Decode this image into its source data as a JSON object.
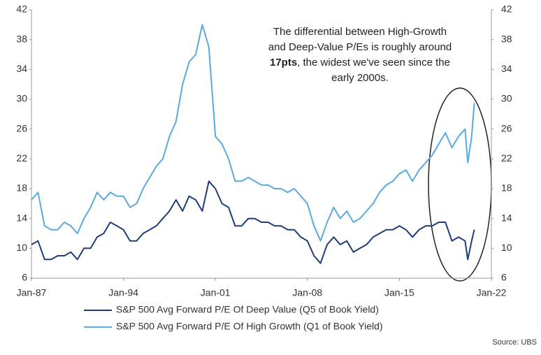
{
  "chart_data": {
    "type": "line",
    "annotation": [
      "The differential between High-Growth",
      "and Deep-Value P/Es is roughly around",
      [
        "17pts",
        ", the widest we've seen since the"
      ],
      "early 2000s."
    ],
    "source": "Source: UBS",
    "x": [
      1987,
      1987.5,
      1988,
      1988.5,
      1989,
      1989.5,
      1990,
      1990.5,
      1991,
      1991.5,
      1992,
      1992.5,
      1993,
      1993.5,
      1994,
      1994.5,
      1995,
      1995.5,
      1996,
      1996.5,
      1997,
      1997.5,
      1998,
      1998.5,
      1999,
      1999.5,
      2000,
      2000.5,
      2001,
      2001.5,
      2002,
      2002.5,
      2003,
      2003.5,
      2004,
      2004.5,
      2005,
      2005.5,
      2006,
      2006.5,
      2007,
      2007.5,
      2008,
      2008.5,
      2009,
      2009.5,
      2010,
      2010.5,
      2011,
      2011.5,
      2012,
      2012.5,
      2013,
      2013.5,
      2014,
      2014.5,
      2015,
      2015.5,
      2016,
      2016.5,
      2017,
      2017.5,
      2018,
      2018.5,
      2019,
      2019.5,
      2020,
      2020.2,
      2020.5,
      2020.7
    ],
    "series": [
      {
        "name": "S&P 500 Avg Forward P/E Of Deep Value (Q5 of Book Yield)",
        "color": "#1f3d7a",
        "values": [
          10.5,
          11,
          8.5,
          8.5,
          9,
          9,
          9.5,
          8.5,
          10,
          10,
          11.5,
          12,
          13.5,
          13,
          12.5,
          11,
          11,
          12,
          12.5,
          13,
          14,
          15,
          16.5,
          15,
          17,
          16.5,
          15,
          19,
          18,
          16,
          15.5,
          13,
          13,
          14,
          14,
          13.5,
          13.5,
          13,
          13,
          12.5,
          12.5,
          11.5,
          11,
          9,
          8,
          10.5,
          11.5,
          10.5,
          11,
          9.5,
          10,
          10.5,
          11.5,
          12,
          12.5,
          12.5,
          13,
          12.5,
          11.5,
          12.5,
          13,
          13,
          13.5,
          13.5,
          11,
          11.5,
          11,
          8.5,
          11,
          12.5
        ]
      },
      {
        "name": "S&P 500 Avg Forward P/E Of High Growth (Q1 of Book Yield)",
        "color": "#5aa9e0",
        "values": [
          16.5,
          17.5,
          13,
          12.5,
          12.5,
          13.5,
          13,
          12,
          14,
          15.5,
          17.5,
          16.5,
          17.5,
          17,
          17,
          15.5,
          16,
          18,
          19.5,
          21,
          22,
          25,
          27,
          32,
          35,
          36,
          40,
          37,
          25,
          24,
          22,
          19,
          19,
          19.5,
          19,
          18.5,
          18.5,
          18,
          18,
          17.5,
          18,
          17,
          16,
          13,
          11,
          13.5,
          15.5,
          14,
          15,
          13.5,
          14,
          15,
          16,
          17.5,
          18.5,
          19,
          20,
          20.5,
          19,
          20.5,
          21.5,
          22.5,
          24,
          25.5,
          23.5,
          25,
          26,
          21.5,
          25,
          29.5
        ]
      }
    ],
    "xlim": [
      1987,
      2022
    ],
    "xticks": [
      {
        "value": 1987,
        "label": "Jan-87"
      },
      {
        "value": 1994,
        "label": "Jan-94"
      },
      {
        "value": 2001,
        "label": "Jan-01"
      },
      {
        "value": 2008,
        "label": "Jan-08"
      },
      {
        "value": 2015,
        "label": "Jan-15"
      },
      {
        "value": 2022,
        "label": "Jan-22"
      }
    ],
    "ylim": [
      6,
      42
    ],
    "yticks": [
      6,
      10,
      14,
      18,
      22,
      26,
      30,
      34,
      38,
      42
    ],
    "y2lim": [
      6,
      42
    ],
    "y2ticks": [
      6,
      10,
      14,
      18,
      22,
      26,
      30,
      34,
      38,
      42
    ]
  }
}
